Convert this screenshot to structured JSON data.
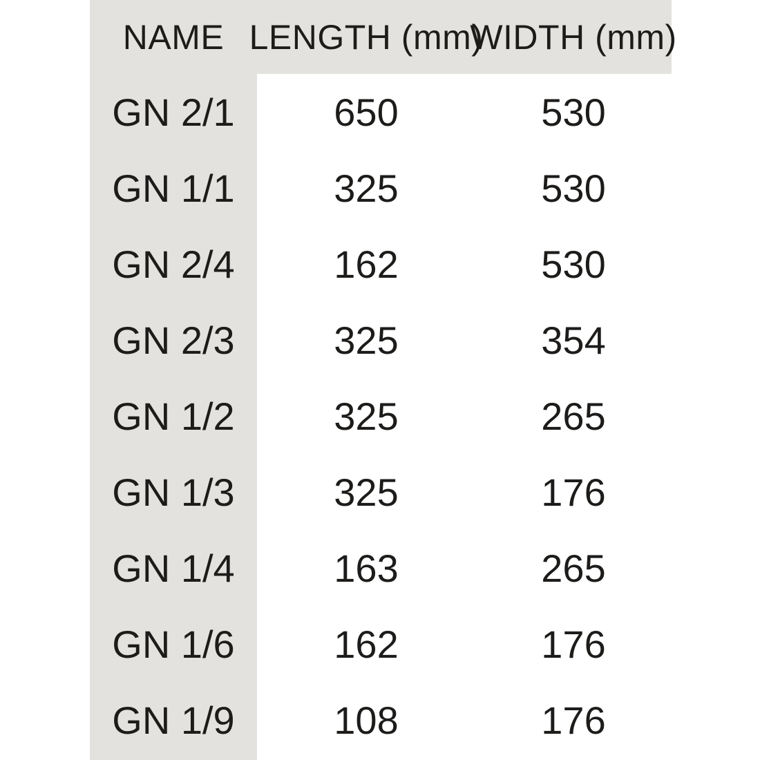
{
  "page": {
    "background_color": "#ffffff",
    "band_color": "#e3e2df",
    "text_color": "#1d1c1a"
  },
  "table": {
    "columns": [
      "NAME",
      "LENGTH (mm)",
      "WIDTH (mm)"
    ],
    "rows": [
      {
        "name": "GN 2/1",
        "length": "650",
        "width": "530"
      },
      {
        "name": "GN 1/1",
        "length": "325",
        "width": "530"
      },
      {
        "name": "GN 2/4",
        "length": "162",
        "width": "530"
      },
      {
        "name": "GN 2/3",
        "length": "325",
        "width": "354"
      },
      {
        "name": "GN 1/2",
        "length": "325",
        "width": "265"
      },
      {
        "name": "GN 1/3",
        "length": "325",
        "width": "176"
      },
      {
        "name": "GN 1/4",
        "length": "163",
        "width": "265"
      },
      {
        "name": "GN 1/6",
        "length": "162",
        "width": "176"
      },
      {
        "name": "GN 1/9",
        "length": "108",
        "width": "176"
      }
    ]
  }
}
